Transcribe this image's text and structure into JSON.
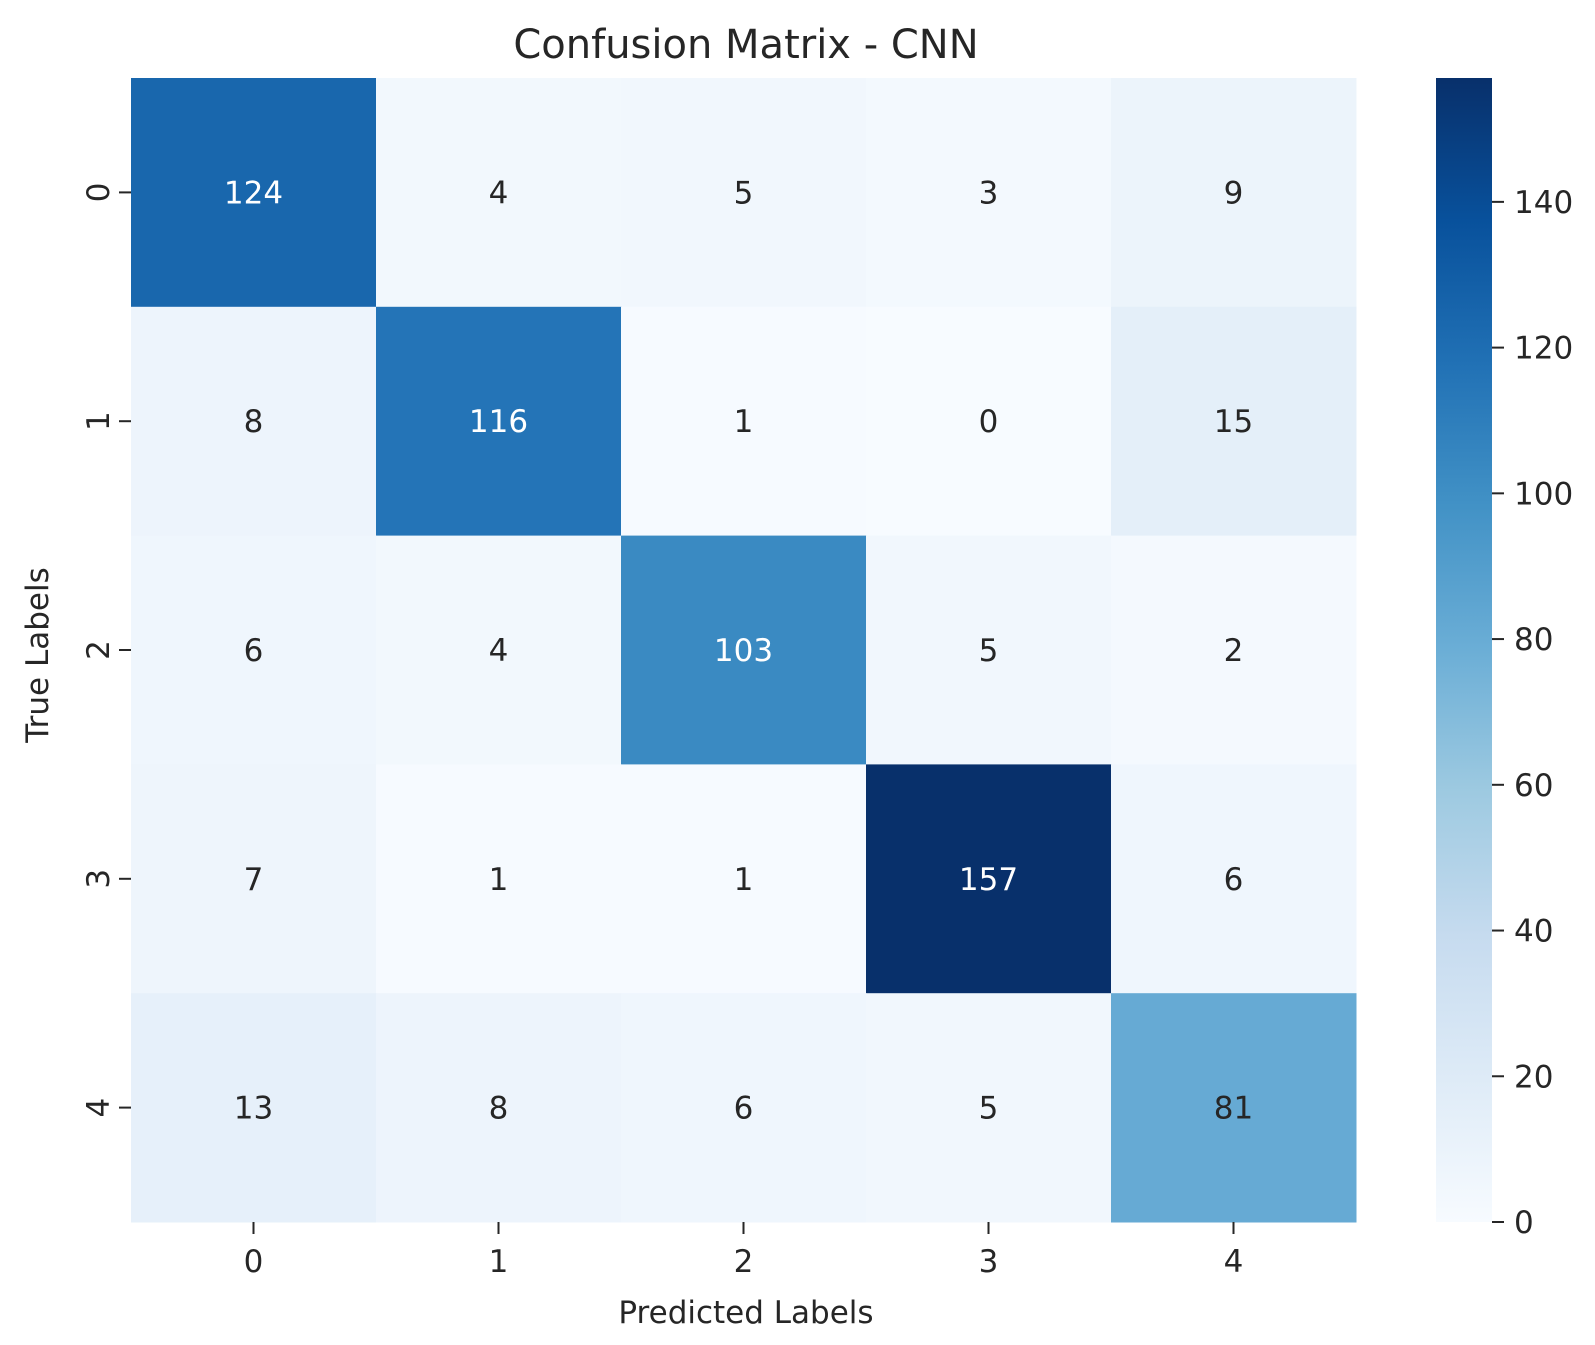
{
  "chart_data": {
    "type": "heatmap",
    "title": "Confusion Matrix - CNN",
    "xlabel": "Predicted Labels",
    "ylabel": "True Labels",
    "x_categories": [
      "0",
      "1",
      "2",
      "3",
      "4"
    ],
    "y_categories": [
      "0",
      "1",
      "2",
      "3",
      "4"
    ],
    "matrix": [
      [
        124,
        4,
        5,
        3,
        9
      ],
      [
        8,
        116,
        1,
        0,
        15
      ],
      [
        6,
        4,
        103,
        5,
        2
      ],
      [
        7,
        1,
        1,
        157,
        6
      ],
      [
        13,
        8,
        6,
        5,
        81
      ]
    ],
    "colormap": "Blues",
    "colorbar": {
      "range": [
        0,
        157
      ],
      "ticks": [
        0,
        20,
        40,
        60,
        80,
        100,
        120,
        140
      ]
    },
    "colors": {
      "low": "#f7fbff",
      "high": "#08306b",
      "annotation_light": "#ffffff",
      "annotation_dark": "#262626"
    }
  }
}
